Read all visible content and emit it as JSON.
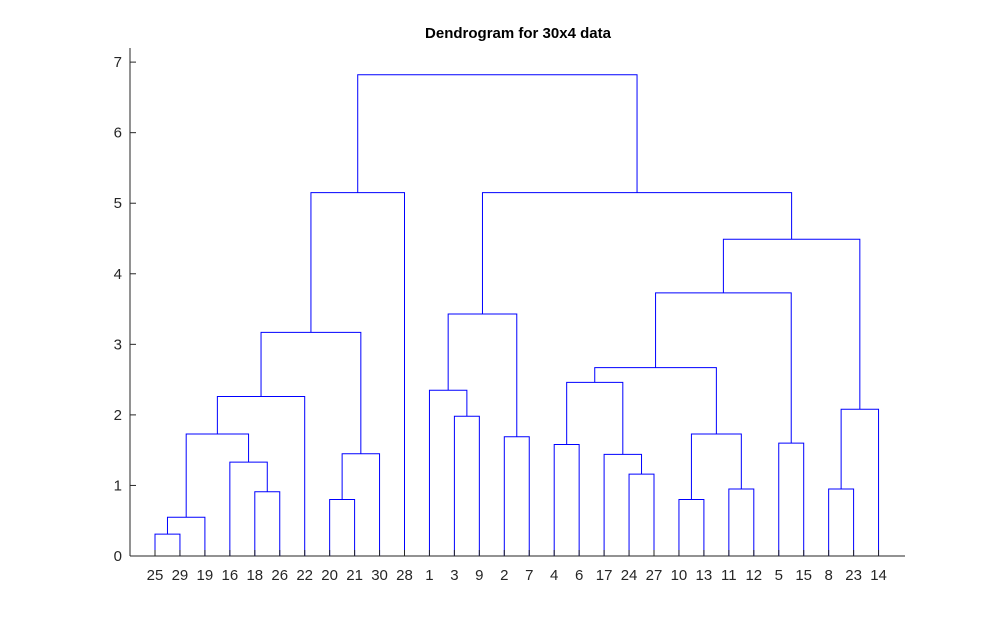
{
  "chart_data": {
    "type": "dendrogram",
    "title": "Dendrogram for 30x4 data",
    "xlabel": "",
    "ylabel": "",
    "ylim": [
      0,
      7.2
    ],
    "yticks": [
      0,
      1,
      2,
      3,
      4,
      5,
      6,
      7
    ],
    "link_color": "#0000ff",
    "leaf_order": [
      25,
      29,
      19,
      16,
      18,
      26,
      22,
      20,
      21,
      30,
      28,
      1,
      3,
      9,
      2,
      7,
      4,
      6,
      17,
      24,
      27,
      10,
      13,
      11,
      12,
      5,
      15,
      8,
      23,
      14
    ],
    "links": [
      {
        "left": 25,
        "right": 29,
        "height": 0.31
      },
      {
        "left": "25+29",
        "right": 19,
        "height": 0.55
      },
      {
        "left": 18,
        "right": 26,
        "height": 0.91
      },
      {
        "left": 16,
        "right": "18+26",
        "height": 1.33
      },
      {
        "left": "25+29+19",
        "right": "16+18+26",
        "height": 1.73
      },
      {
        "left": "25..26",
        "right": 22,
        "height": 2.26
      },
      {
        "left": 20,
        "right": 21,
        "height": 0.8
      },
      {
        "left": "20+21",
        "right": 30,
        "height": 1.45
      },
      {
        "left": "25..22",
        "right": "20+21+30",
        "height": 3.17
      },
      {
        "left": "25..30",
        "right": 28,
        "height": 5.15
      },
      {
        "left": 3,
        "right": 9,
        "height": 1.98
      },
      {
        "left": 1,
        "right": "3+9",
        "height": 2.35
      },
      {
        "left": 2,
        "right": 7,
        "height": 1.69
      },
      {
        "left": "1+3+9",
        "right": "2+7",
        "height": 3.43
      },
      {
        "left": 4,
        "right": 6,
        "height": 1.58
      },
      {
        "left": 24,
        "right": 27,
        "height": 1.16
      },
      {
        "left": 17,
        "right": "24+27",
        "height": 1.44
      },
      {
        "left": "4+6",
        "right": "17+24+27",
        "height": 2.46
      },
      {
        "left": 10,
        "right": 13,
        "height": 0.8
      },
      {
        "left": 11,
        "right": 12,
        "height": 0.95
      },
      {
        "left": "10+13",
        "right": "11+12",
        "height": 1.73
      },
      {
        "left": "4..27",
        "right": "10..12",
        "height": 2.67
      },
      {
        "left": 5,
        "right": 15,
        "height": 1.6
      },
      {
        "left": "4..12",
        "right": "5+15",
        "height": 3.73
      },
      {
        "left": 8,
        "right": 23,
        "height": 0.95
      },
      {
        "left": "8+23",
        "right": 14,
        "height": 2.08
      },
      {
        "left": "4..15",
        "right": "8+23+14",
        "height": 4.49
      },
      {
        "left": "1..7",
        "right": "4..14",
        "height": 5.15
      },
      {
        "left": "25..28",
        "right": "1..14",
        "height": 6.82
      }
    ]
  }
}
